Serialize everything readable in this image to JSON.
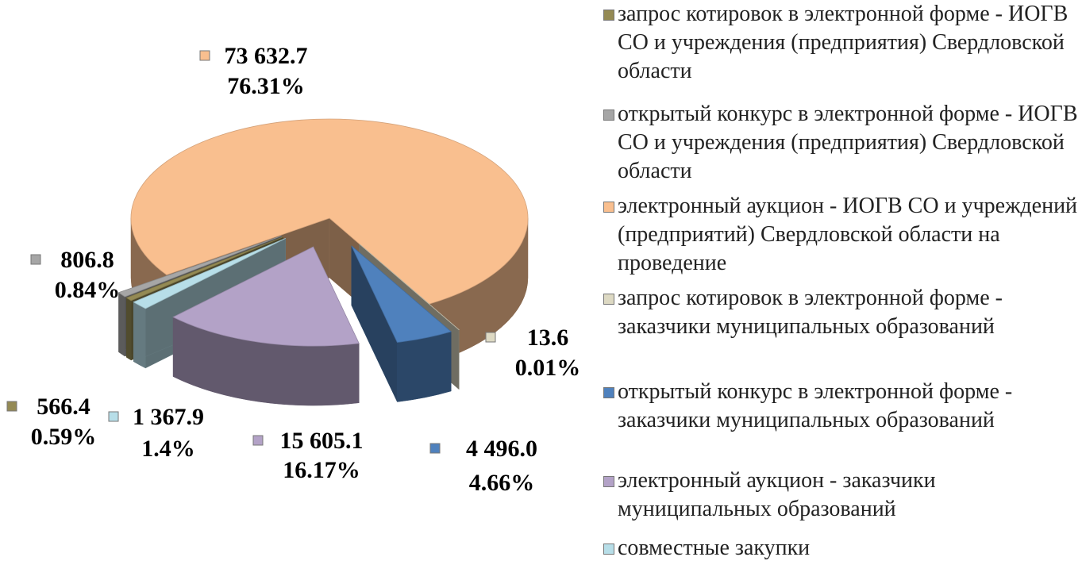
{
  "chart_data": {
    "type": "pie",
    "categories": [
      "запрос котировок в электронной форме - ИОГВ СО и учреждения (предприятия) Свердловской области",
      "открытый конкурс в электронной форме - ИОГВ СО и учреждения (предприятия) Свердловской области",
      "электронный аукцион - ИОГВ СО и учреждений (предприятий) Свердловской области на проведение",
      "запрос котировок в электронной форме - заказчики муниципальных образований",
      "открытый конкурс в электронной форме - заказчики муниципальных образований",
      "электронный аукцион - заказчики муниципальных образований",
      "совместные закупки"
    ],
    "values": [
      566.4,
      806.8,
      73632.7,
      13.6,
      4496.0,
      15605.1,
      1367.9
    ],
    "value_labels": [
      "566.4",
      "806.8",
      "73 632.7",
      "13.6",
      "4 496.0",
      "15 605.1",
      "1 367.9"
    ],
    "percents": [
      0.59,
      0.84,
      76.31,
      0.01,
      4.66,
      16.17,
      1.4
    ],
    "percent_labels": [
      "0.59%",
      "0.84%",
      "76.31%",
      "0.01%",
      "4.66%",
      "16.17%",
      "1.4%"
    ],
    "colors": [
      "#948a54",
      "#a6a6a6",
      "#f9bf8f",
      "#ddd9c3",
      "#4f81bd",
      "#b3a2c7",
      "#b7dee8"
    ],
    "legend": "right"
  }
}
